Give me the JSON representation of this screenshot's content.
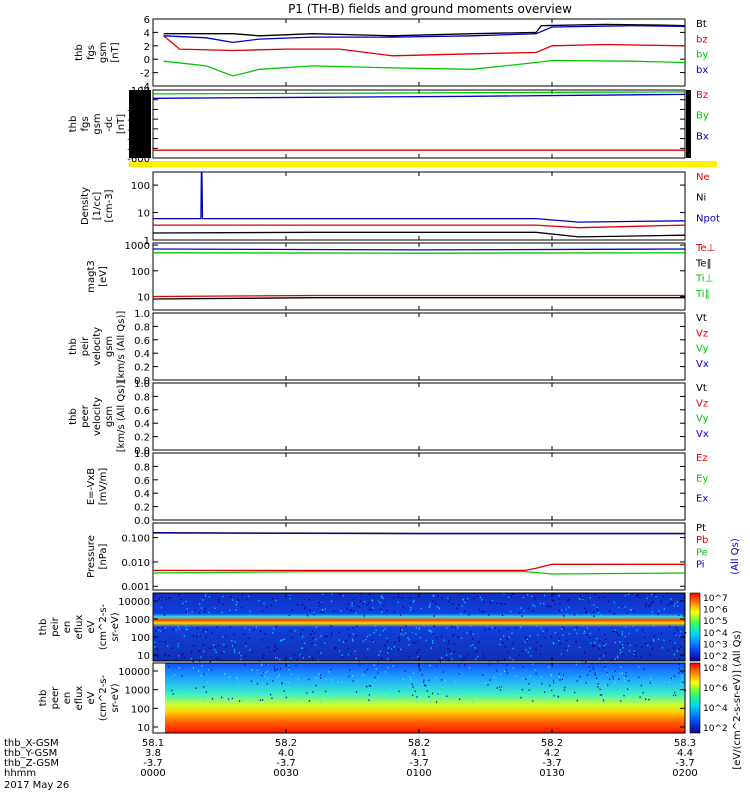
{
  "title": "P1 (TH-B) fields and ground moments overview",
  "date_label": "2017 May 26",
  "colors": {
    "black": "#000000",
    "red": "#e00000",
    "green": "#00c800",
    "blue": "#0000c8",
    "yellow": "#ffee00"
  },
  "chart_data": [
    {
      "type": "line",
      "id": "fgs",
      "ylabels": [
        "thb",
        "fgs",
        "gsm",
        "[nT]"
      ],
      "ylim": [
        -4,
        6
      ],
      "yticks": [
        "-4",
        "-2",
        "0",
        "2",
        "4",
        "6"
      ],
      "legend": [
        {
          "name": "Bt",
          "color": "black"
        },
        {
          "name": "bz",
          "color": "red"
        },
        {
          "name": "by",
          "color": "green"
        },
        {
          "name": "bx",
          "color": "blue"
        }
      ],
      "series": [
        {
          "name": "Bt",
          "color": "black",
          "x": [
            0.02,
            0.15,
            0.2,
            0.3,
            0.45,
            0.6,
            0.72,
            0.73,
            0.85,
            0.95,
            1.0
          ],
          "y": [
            3.8,
            3.8,
            3.5,
            3.8,
            3.5,
            3.8,
            4.0,
            5.0,
            5.2,
            5.1,
            5.0
          ]
        },
        {
          "name": "bz",
          "color": "red",
          "x": [
            0.02,
            0.05,
            0.15,
            0.25,
            0.35,
            0.45,
            0.6,
            0.72,
            0.75,
            0.85,
            1.0
          ],
          "y": [
            3.5,
            1.5,
            1.3,
            1.5,
            1.5,
            0.5,
            0.8,
            1.0,
            2.0,
            2.2,
            2.0
          ]
        },
        {
          "name": "by",
          "color": "green",
          "x": [
            0.02,
            0.1,
            0.15,
            0.2,
            0.3,
            0.45,
            0.6,
            0.72,
            0.75,
            0.9,
            1.0
          ],
          "y": [
            -0.3,
            -1.0,
            -2.5,
            -1.5,
            -1.0,
            -1.3,
            -1.5,
            -0.5,
            -0.2,
            -0.3,
            -0.5
          ]
        },
        {
          "name": "bx",
          "color": "blue",
          "x": [
            0.02,
            0.1,
            0.15,
            0.2,
            0.3,
            0.45,
            0.6,
            0.72,
            0.75,
            0.9,
            1.0
          ],
          "y": [
            3.5,
            3.2,
            2.5,
            3.0,
            3.3,
            3.3,
            3.5,
            3.8,
            4.8,
            5.0,
            4.9
          ]
        }
      ]
    },
    {
      "type": "line",
      "id": "fgs_dc",
      "ylabels": [
        "thb",
        "fgs",
        "gsm",
        "-dc",
        "[nT]"
      ],
      "ylim": [
        -600,
        100
      ],
      "yticks": [
        "-600",
        "-500",
        "-400",
        "-300",
        "-200",
        "-100",
        "0",
        "100"
      ],
      "legend": [
        {
          "name": "Bz",
          "color": "red"
        },
        {
          "name": "By",
          "color": "green"
        },
        {
          "name": "Bx",
          "color": "blue"
        }
      ],
      "series": [
        {
          "name": "Bz",
          "color": "red",
          "x": [
            0,
            1
          ],
          "y": [
            -520,
            -520
          ]
        },
        {
          "name": "By",
          "color": "green",
          "x": [
            0,
            0.5,
            1
          ],
          "y": [
            60,
            70,
            80
          ]
        },
        {
          "name": "Bx",
          "color": "blue",
          "x": [
            0,
            0.3,
            0.6,
            0.8,
            1
          ],
          "y": [
            15,
            25,
            35,
            45,
            55
          ]
        }
      ]
    },
    {
      "type": "line",
      "id": "density",
      "ylabels": [
        "Density",
        "[1/cc]",
        "[cm-3]"
      ],
      "log": true,
      "ylim": [
        1,
        300
      ],
      "yticks": [
        "100",
        "10",
        "1"
      ],
      "legend": [
        {
          "name": "Ne",
          "color": "red"
        },
        {
          "name": "Ni",
          "color": "black"
        },
        {
          "name": "Npot",
          "color": "blue"
        }
      ],
      "series": [
        {
          "name": "Ne",
          "color": "red",
          "x": [
            0,
            0.3,
            0.72,
            0.8,
            1
          ],
          "y": [
            3.5,
            3.5,
            3.5,
            2.8,
            3.5
          ]
        },
        {
          "name": "Ni",
          "color": "black",
          "x": [
            0,
            0.3,
            0.72,
            0.8,
            1
          ],
          "y": [
            1.8,
            1.9,
            1.9,
            1.3,
            1.5
          ]
        },
        {
          "name": "Npot",
          "color": "blue",
          "x": [
            0,
            0.09,
            0.091,
            0.092,
            0.093,
            0.3,
            0.72,
            0.8,
            1
          ],
          "y": [
            6,
            6,
            300,
            300,
            6,
            6,
            6,
            4.5,
            5
          ]
        }
      ]
    },
    {
      "type": "line",
      "id": "temperature",
      "ylabels": [
        "magt3",
        "[eV]"
      ],
      "log": true,
      "ylim": [
        3,
        1200
      ],
      "yticks": [
        "1000",
        "100",
        "10"
      ],
      "legend": [
        {
          "name": "Te⊥",
          "color": "red"
        },
        {
          "name": "Te‖",
          "color": "black"
        },
        {
          "name": "Ti⊥",
          "color": "green"
        },
        {
          "name": "Ti‖",
          "color": "green"
        }
      ],
      "series": [
        {
          "name": "Ti",
          "color": "blue",
          "x": [
            0,
            0.5,
            1
          ],
          "y": [
            700,
            650,
            700
          ]
        },
        {
          "name": "Ti‖",
          "color": "green",
          "x": [
            0,
            0.5,
            1
          ],
          "y": [
            500,
            480,
            500
          ]
        },
        {
          "name": "Te⊥",
          "color": "red",
          "x": [
            0,
            0.3,
            0.72,
            1
          ],
          "y": [
            10,
            11,
            11,
            11
          ]
        },
        {
          "name": "Te‖",
          "color": "black",
          "x": [
            0,
            0.3,
            0.72,
            1
          ],
          "y": [
            8,
            9,
            9,
            9
          ]
        }
      ]
    },
    {
      "type": "line",
      "id": "peir_velocity",
      "ylabels": [
        "thb",
        "peir",
        "velocity",
        "gsm",
        "[km/s (All Qs)]"
      ],
      "ylim": [
        0,
        1
      ],
      "yticks": [
        "0.0",
        "0.2",
        "0.4",
        "0.6",
        "0.8",
        "1.0"
      ],
      "legend": [
        {
          "name": "Vt",
          "color": "black"
        },
        {
          "name": "Vz",
          "color": "red"
        },
        {
          "name": "Vy",
          "color": "green"
        },
        {
          "name": "Vx",
          "color": "blue"
        }
      ],
      "series": []
    },
    {
      "type": "line",
      "id": "peer_velocity",
      "ylabels": [
        "thb",
        "peer",
        "velocity",
        "gsm",
        "[km/s (All Qs)]"
      ],
      "ylim": [
        0,
        1
      ],
      "yticks": [
        "0.0",
        "0.2",
        "0.4",
        "0.6",
        "0.8",
        "1.0"
      ],
      "legend": [
        {
          "name": "Vt",
          "color": "black"
        },
        {
          "name": "Vz",
          "color": "red"
        },
        {
          "name": "Vy",
          "color": "green"
        },
        {
          "name": "Vx",
          "color": "blue"
        }
      ],
      "series": []
    },
    {
      "type": "line",
      "id": "efield",
      "ylabels": [
        "E=-VxB",
        "[mV/m]"
      ],
      "ylim": [
        0,
        1
      ],
      "yticks": [
        "0.0",
        "0.2",
        "0.4",
        "0.6",
        "0.8",
        "1.0"
      ],
      "legend": [
        {
          "name": "Ez",
          "color": "red"
        },
        {
          "name": "Ey",
          "color": "green"
        },
        {
          "name": "Ex",
          "color": "blue"
        }
      ],
      "series": []
    },
    {
      "type": "line",
      "id": "pressure",
      "ylabels": [
        "Pressure",
        "[nPa]"
      ],
      "log": true,
      "ylim": [
        0.0007,
        0.4
      ],
      "yticks": [
        "0.100",
        "0.010",
        "0.001"
      ],
      "legend": [
        {
          "name": "Pt",
          "color": "black"
        },
        {
          "name": "Pb",
          "color": "red"
        },
        {
          "name": "Pe",
          "color": "green"
        },
        {
          "name": "Pi",
          "color": "blue"
        },
        {
          "name": "(All Qs)",
          "color": "blue"
        }
      ],
      "series": [
        {
          "name": "Pt",
          "color": "black",
          "x": [
            0,
            0.5,
            1
          ],
          "y": [
            0.16,
            0.15,
            0.15
          ]
        },
        {
          "name": "Pi",
          "color": "blue",
          "x": [
            0,
            0.5,
            1
          ],
          "y": [
            0.155,
            0.145,
            0.145
          ]
        },
        {
          "name": "Pb",
          "color": "red",
          "x": [
            0,
            0.3,
            0.7,
            0.72,
            0.75,
            1
          ],
          "y": [
            0.0045,
            0.0045,
            0.0045,
            0.0055,
            0.008,
            0.008
          ]
        },
        {
          "name": "Pe",
          "color": "green",
          "x": [
            0,
            0.3,
            0.7,
            0.75,
            1
          ],
          "y": [
            0.0035,
            0.004,
            0.004,
            0.0032,
            0.0035
          ]
        }
      ]
    },
    {
      "type": "heatmap",
      "id": "peir_spec",
      "ylabels": [
        "thb",
        "peir",
        "en",
        "eflux",
        "eV",
        "(cm^2-s-",
        "sr-eV)"
      ],
      "yticks": [
        "10000",
        "1000",
        "100",
        "10"
      ],
      "colorbar": {
        "label": "[eV/(cm^2-s-sr-eV)] (All Qs)",
        "ticks": [
          "10^7",
          "10^6",
          "10^5",
          "10^4",
          "10^3",
          "10^2"
        ]
      }
    },
    {
      "type": "heatmap",
      "id": "peer_spec",
      "ylabels": [
        "thb",
        "peer",
        "en",
        "eflux",
        "eV",
        "(cm^2-s-",
        "sr-eV)"
      ],
      "yticks": [
        "10000",
        "1000",
        "100",
        "10"
      ],
      "colorbar": {
        "label": "[eV/(cm^2-s-sr-eV)]",
        "ticks": [
          "10^8",
          "10^6",
          "10^4",
          "10^2"
        ]
      }
    }
  ],
  "xaxis": {
    "rows": [
      {
        "label": "thb_X-GSM",
        "values": [
          "58.1",
          "58.2",
          "58.2",
          "58.2",
          "58.3"
        ]
      },
      {
        "label": "thb_Y-GSM",
        "values": [
          "3.8",
          "4.0",
          "4.1",
          "4.2",
          "4.4"
        ]
      },
      {
        "label": "thb_Z-GSM",
        "values": [
          "-3.7",
          "-3.7",
          "-3.7",
          "-3.7",
          "-3.7"
        ]
      },
      {
        "label": "hhmm",
        "values": [
          "0000",
          "0030",
          "0100",
          "0130",
          "0200"
        ]
      }
    ]
  }
}
